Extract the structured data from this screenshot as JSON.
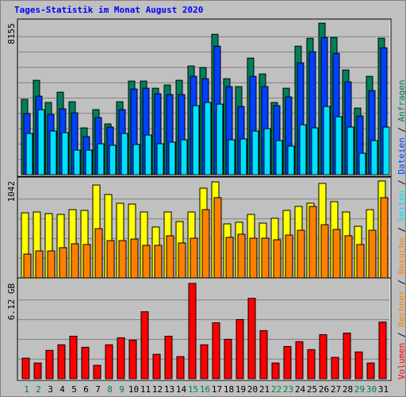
{
  "chart_data": [
    {
      "type": "bar",
      "title": "Tages-Statistik im Monat August 2020",
      "ylim": [
        0,
        8250
      ],
      "yticks": [
        8155
      ],
      "grid": true,
      "series": [
        {
          "name": "Anfragen",
          "color": "#00805c",
          "values": [
            4056,
            5081,
            3886,
            4441,
            3928,
            2519,
            3501,
            2733,
            3928,
            5039,
            5039,
            4654,
            4825,
            5081,
            5850,
            5765,
            7558,
            5167,
            4740,
            6277,
            5423,
            3886,
            4654,
            6917,
            7344,
            8155,
            7387,
            5636,
            3587,
            5295,
            7344
          ]
        },
        {
          "name": "Dateien",
          "color": "#0040ff",
          "values": [
            3288,
            4227,
            3245,
            3544,
            3331,
            2050,
            3074,
            2562,
            3501,
            4612,
            4654,
            4355,
            4313,
            4313,
            5295,
            5167,
            6917,
            4740,
            3672,
            5295,
            4740,
            3715,
            4185,
            6021,
            6619,
            7387,
            6533,
            4996,
            3160,
            4526,
            6832
          ]
        },
        {
          "name": "Seiten",
          "color": "#00e0ff",
          "values": [
            2220,
            3501,
            2349,
            2263,
            1324,
            1324,
            1665,
            1580,
            2220,
            1623,
            2135,
            1665,
            1751,
            1879,
            3715,
            3886,
            3800,
            1879,
            1922,
            2349,
            2477,
            1836,
            1537,
            2690,
            2519,
            3672,
            3117,
            2562,
            1153,
            1836,
            2562
          ]
        }
      ]
    },
    {
      "type": "bar",
      "ylim": [
        0,
        1059
      ],
      "yticks": [
        1042
      ],
      "grid": true,
      "series": [
        {
          "name": "Besuche",
          "color": "#ffff00",
          "text_color": "#ff8000",
          "values": [
            700,
            709,
            692,
            683,
            734,
            726,
            999,
            897,
            803,
            794,
            709,
            547,
            709,
            606,
            709,
            965,
            1033,
            581,
            598,
            683,
            589,
            641,
            726,
            769,
            803,
            1016,
            820,
            709,
            555,
            734,
            1042
          ]
        },
        {
          "name": "Rechner",
          "color": "#ff8000",
          "values": [
            256,
            290,
            290,
            325,
            367,
            359,
            529,
            401,
            401,
            418,
            350,
            350,
            453,
            376,
            427,
            734,
            863,
            436,
            470,
            427,
            427,
            410,
            461,
            512,
            769,
            572,
            521,
            453,
            359,
            512,
            863
          ]
        }
      ]
    },
    {
      "type": "bar",
      "ylim": [
        0,
        6.32
      ],
      "yticks": [
        {
          "value": 6.12,
          "label": "6.12 GB"
        }
      ],
      "grid": true,
      "separator": " / ",
      "categories": [
        "1",
        "2",
        "3",
        "4",
        "5",
        "6",
        "7",
        "8",
        "9",
        "10",
        "11",
        "12",
        "13",
        "14",
        "15",
        "16",
        "17",
        "18",
        "19",
        "20",
        "21",
        "22",
        "23",
        "24",
        "25",
        "26",
        "27",
        "28",
        "29",
        "30",
        "31"
      ],
      "label_colors": [
        "#008040",
        "#008040",
        "#000000",
        "#000000",
        "#000000",
        "#000000",
        "#000000",
        "#008040",
        "#008040",
        "#000000",
        "#000000",
        "#000000",
        "#000000",
        "#000000",
        "#008040",
        "#008040",
        "#000000",
        "#000000",
        "#000000",
        "#000000",
        "#000000",
        "#008040",
        "#008040",
        "#000000",
        "#000000",
        "#000000",
        "#000000",
        "#000000",
        "#008040",
        "#008040",
        "#000000"
      ],
      "series": [
        {
          "name": "Volumen",
          "color": "#ff0000",
          "values": [
            1.32,
            1.01,
            1.82,
            2.18,
            2.73,
            2.02,
            0.86,
            2.18,
            2.63,
            2.48,
            4.3,
            1.57,
            2.73,
            1.42,
            6.12,
            2.18,
            3.59,
            2.53,
            3.8,
            5.16,
            3.09,
            1.01,
            2.07,
            2.38,
            1.87,
            2.83,
            1.37,
            2.93,
            1.72,
            1.01,
            3.64
          ]
        }
      ]
    }
  ]
}
